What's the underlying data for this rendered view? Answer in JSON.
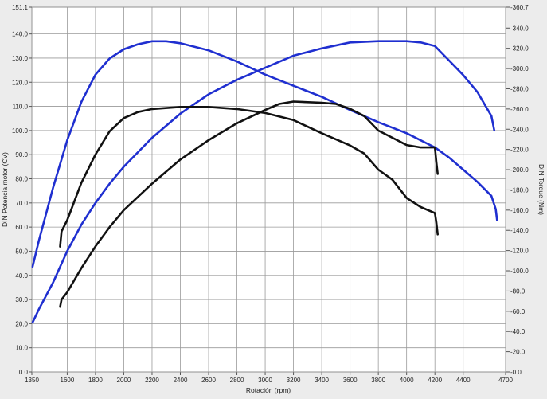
{
  "chart_data": {
    "type": "line",
    "title": "",
    "xlabel": "Rotación (rpm)",
    "ylabel": "DIN Potencia motor (CV)",
    "y2label": "DIN Torque (Nm)",
    "xlim": [
      1350,
      4700
    ],
    "ylim": [
      0,
      151.1
    ],
    "y2lim": [
      0,
      360.7
    ],
    "x_ticks": [
      "1350",
      "1600",
      "1800",
      "2000",
      "2200",
      "2400",
      "2600",
      "2800",
      "3000",
      "3200",
      "3400",
      "3600",
      "3800",
      "4000",
      "4200",
      "4400",
      "4700"
    ],
    "y_ticks": [
      "0.0",
      "10.0",
      "20.0",
      "30.0",
      "40.0",
      "50.0",
      "60.0",
      "70.0",
      "80.0",
      "90.0",
      "100.0",
      "110.0",
      "120.0",
      "130.0",
      "140.0",
      "151.1"
    ],
    "y2_ticks": [
      "0.0",
      "20.0",
      "40.0",
      "60.0",
      "80.0",
      "100.0",
      "120.0",
      "140.0",
      "160.0",
      "180.0",
      "200.0",
      "220.0",
      "240.0",
      "260.0",
      "280.0",
      "300.0",
      "320.0",
      "340.0",
      "360.7"
    ],
    "grid": true,
    "colors": {
      "blue": "#1f2fd0",
      "black": "#111111"
    },
    "series": [
      {
        "color": "#1f2fd0",
        "axis": "right",
        "points": [
          [
            1355,
            104
          ],
          [
            1400,
            130
          ],
          [
            1500,
            182
          ],
          [
            1600,
            229
          ],
          [
            1700,
            267
          ],
          [
            1800,
            294
          ],
          [
            1900,
            310
          ],
          [
            2000,
            319
          ],
          [
            2100,
            324
          ],
          [
            2200,
            327
          ],
          [
            2300,
            327
          ],
          [
            2400,
            325
          ],
          [
            2600,
            318
          ],
          [
            2800,
            307
          ],
          [
            3000,
            294
          ],
          [
            3200,
            283
          ],
          [
            3400,
            272
          ],
          [
            3600,
            259
          ],
          [
            3800,
            247
          ],
          [
            4000,
            236
          ],
          [
            4200,
            222
          ],
          [
            4300,
            212
          ],
          [
            4400,
            200
          ],
          [
            4500,
            188
          ],
          [
            4600,
            174
          ],
          [
            4630,
            161
          ],
          [
            4640,
            150
          ]
        ]
      },
      {
        "color": "#1f2fd0",
        "axis": "left",
        "points": [
          [
            1355,
            20.5
          ],
          [
            1400,
            26
          ],
          [
            1500,
            37
          ],
          [
            1600,
            50
          ],
          [
            1700,
            61
          ],
          [
            1800,
            70
          ],
          [
            1900,
            78
          ],
          [
            2000,
            85
          ],
          [
            2200,
            97
          ],
          [
            2400,
            107
          ],
          [
            2600,
            115
          ],
          [
            2800,
            121
          ],
          [
            3000,
            126
          ],
          [
            3200,
            131
          ],
          [
            3400,
            134
          ],
          [
            3600,
            136.5
          ],
          [
            3800,
            137
          ],
          [
            4000,
            137
          ],
          [
            4100,
            136.5
          ],
          [
            4200,
            135
          ],
          [
            4300,
            129
          ],
          [
            4400,
            123
          ],
          [
            4500,
            116
          ],
          [
            4600,
            106
          ],
          [
            4620,
            100
          ]
        ]
      },
      {
        "color": "#111111",
        "axis": "right",
        "points": [
          [
            1550,
            124
          ],
          [
            1560,
            139
          ],
          [
            1600,
            150
          ],
          [
            1700,
            187
          ],
          [
            1800,
            215
          ],
          [
            1900,
            238
          ],
          [
            2000,
            251
          ],
          [
            2100,
            257
          ],
          [
            2200,
            260
          ],
          [
            2400,
            262
          ],
          [
            2600,
            262
          ],
          [
            2800,
            260
          ],
          [
            3000,
            256
          ],
          [
            3200,
            249
          ],
          [
            3400,
            236
          ],
          [
            3600,
            224
          ],
          [
            3700,
            216
          ],
          [
            3800,
            200
          ],
          [
            3900,
            190
          ],
          [
            4000,
            172
          ],
          [
            4100,
            163
          ],
          [
            4200,
            157
          ],
          [
            4210,
            148
          ],
          [
            4220,
            136
          ]
        ]
      },
      {
        "color": "#111111",
        "axis": "left",
        "points": [
          [
            1550,
            27
          ],
          [
            1560,
            30
          ],
          [
            1600,
            33
          ],
          [
            1700,
            43
          ],
          [
            1800,
            52
          ],
          [
            1900,
            60
          ],
          [
            2000,
            67
          ],
          [
            2200,
            78
          ],
          [
            2400,
            88
          ],
          [
            2600,
            96
          ],
          [
            2800,
            103
          ],
          [
            3000,
            108.5
          ],
          [
            3100,
            111
          ],
          [
            3200,
            112
          ],
          [
            3400,
            111.5
          ],
          [
            3500,
            111
          ],
          [
            3600,
            109
          ],
          [
            3700,
            106
          ],
          [
            3800,
            100
          ],
          [
            3900,
            97
          ],
          [
            4000,
            94
          ],
          [
            4100,
            93
          ],
          [
            4200,
            93
          ],
          [
            4210,
            87
          ],
          [
            4220,
            82
          ]
        ]
      }
    ]
  }
}
